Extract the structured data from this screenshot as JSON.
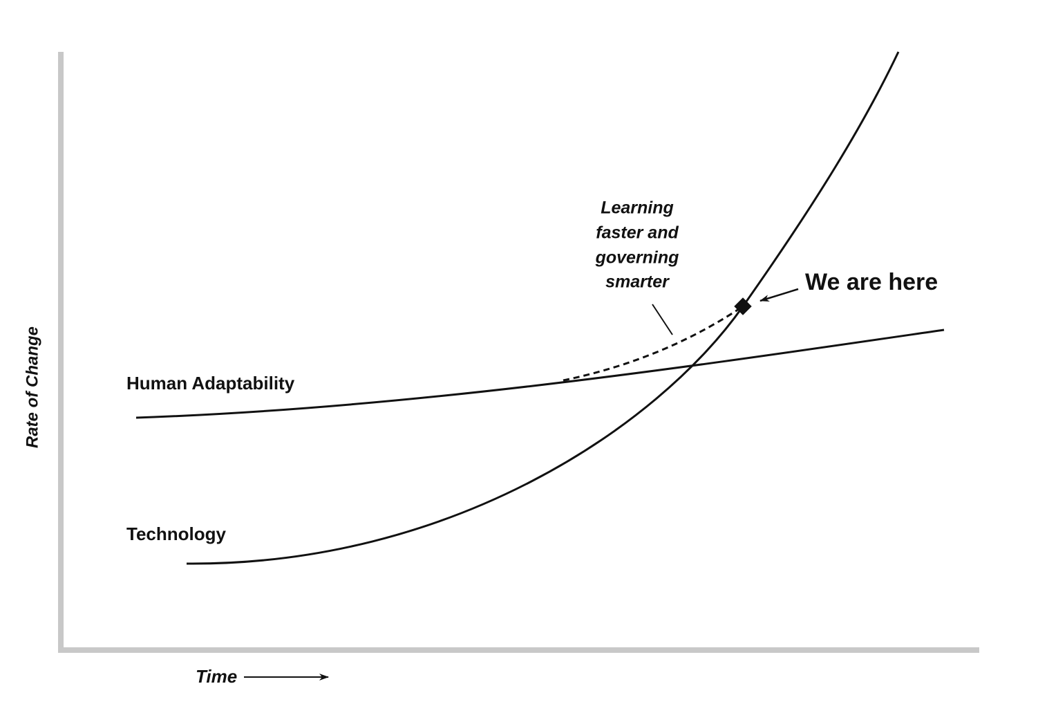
{
  "axes": {
    "y_label": "Rate of Change",
    "x_label": "Time"
  },
  "curves": [
    {
      "label": "Human Adaptability"
    },
    {
      "label": "Technology"
    }
  ],
  "annotations": [
    {
      "lines": [
        "Learning",
        "faster and",
        "governing",
        "smarter"
      ]
    },
    {
      "label": "We are here"
    }
  ]
}
